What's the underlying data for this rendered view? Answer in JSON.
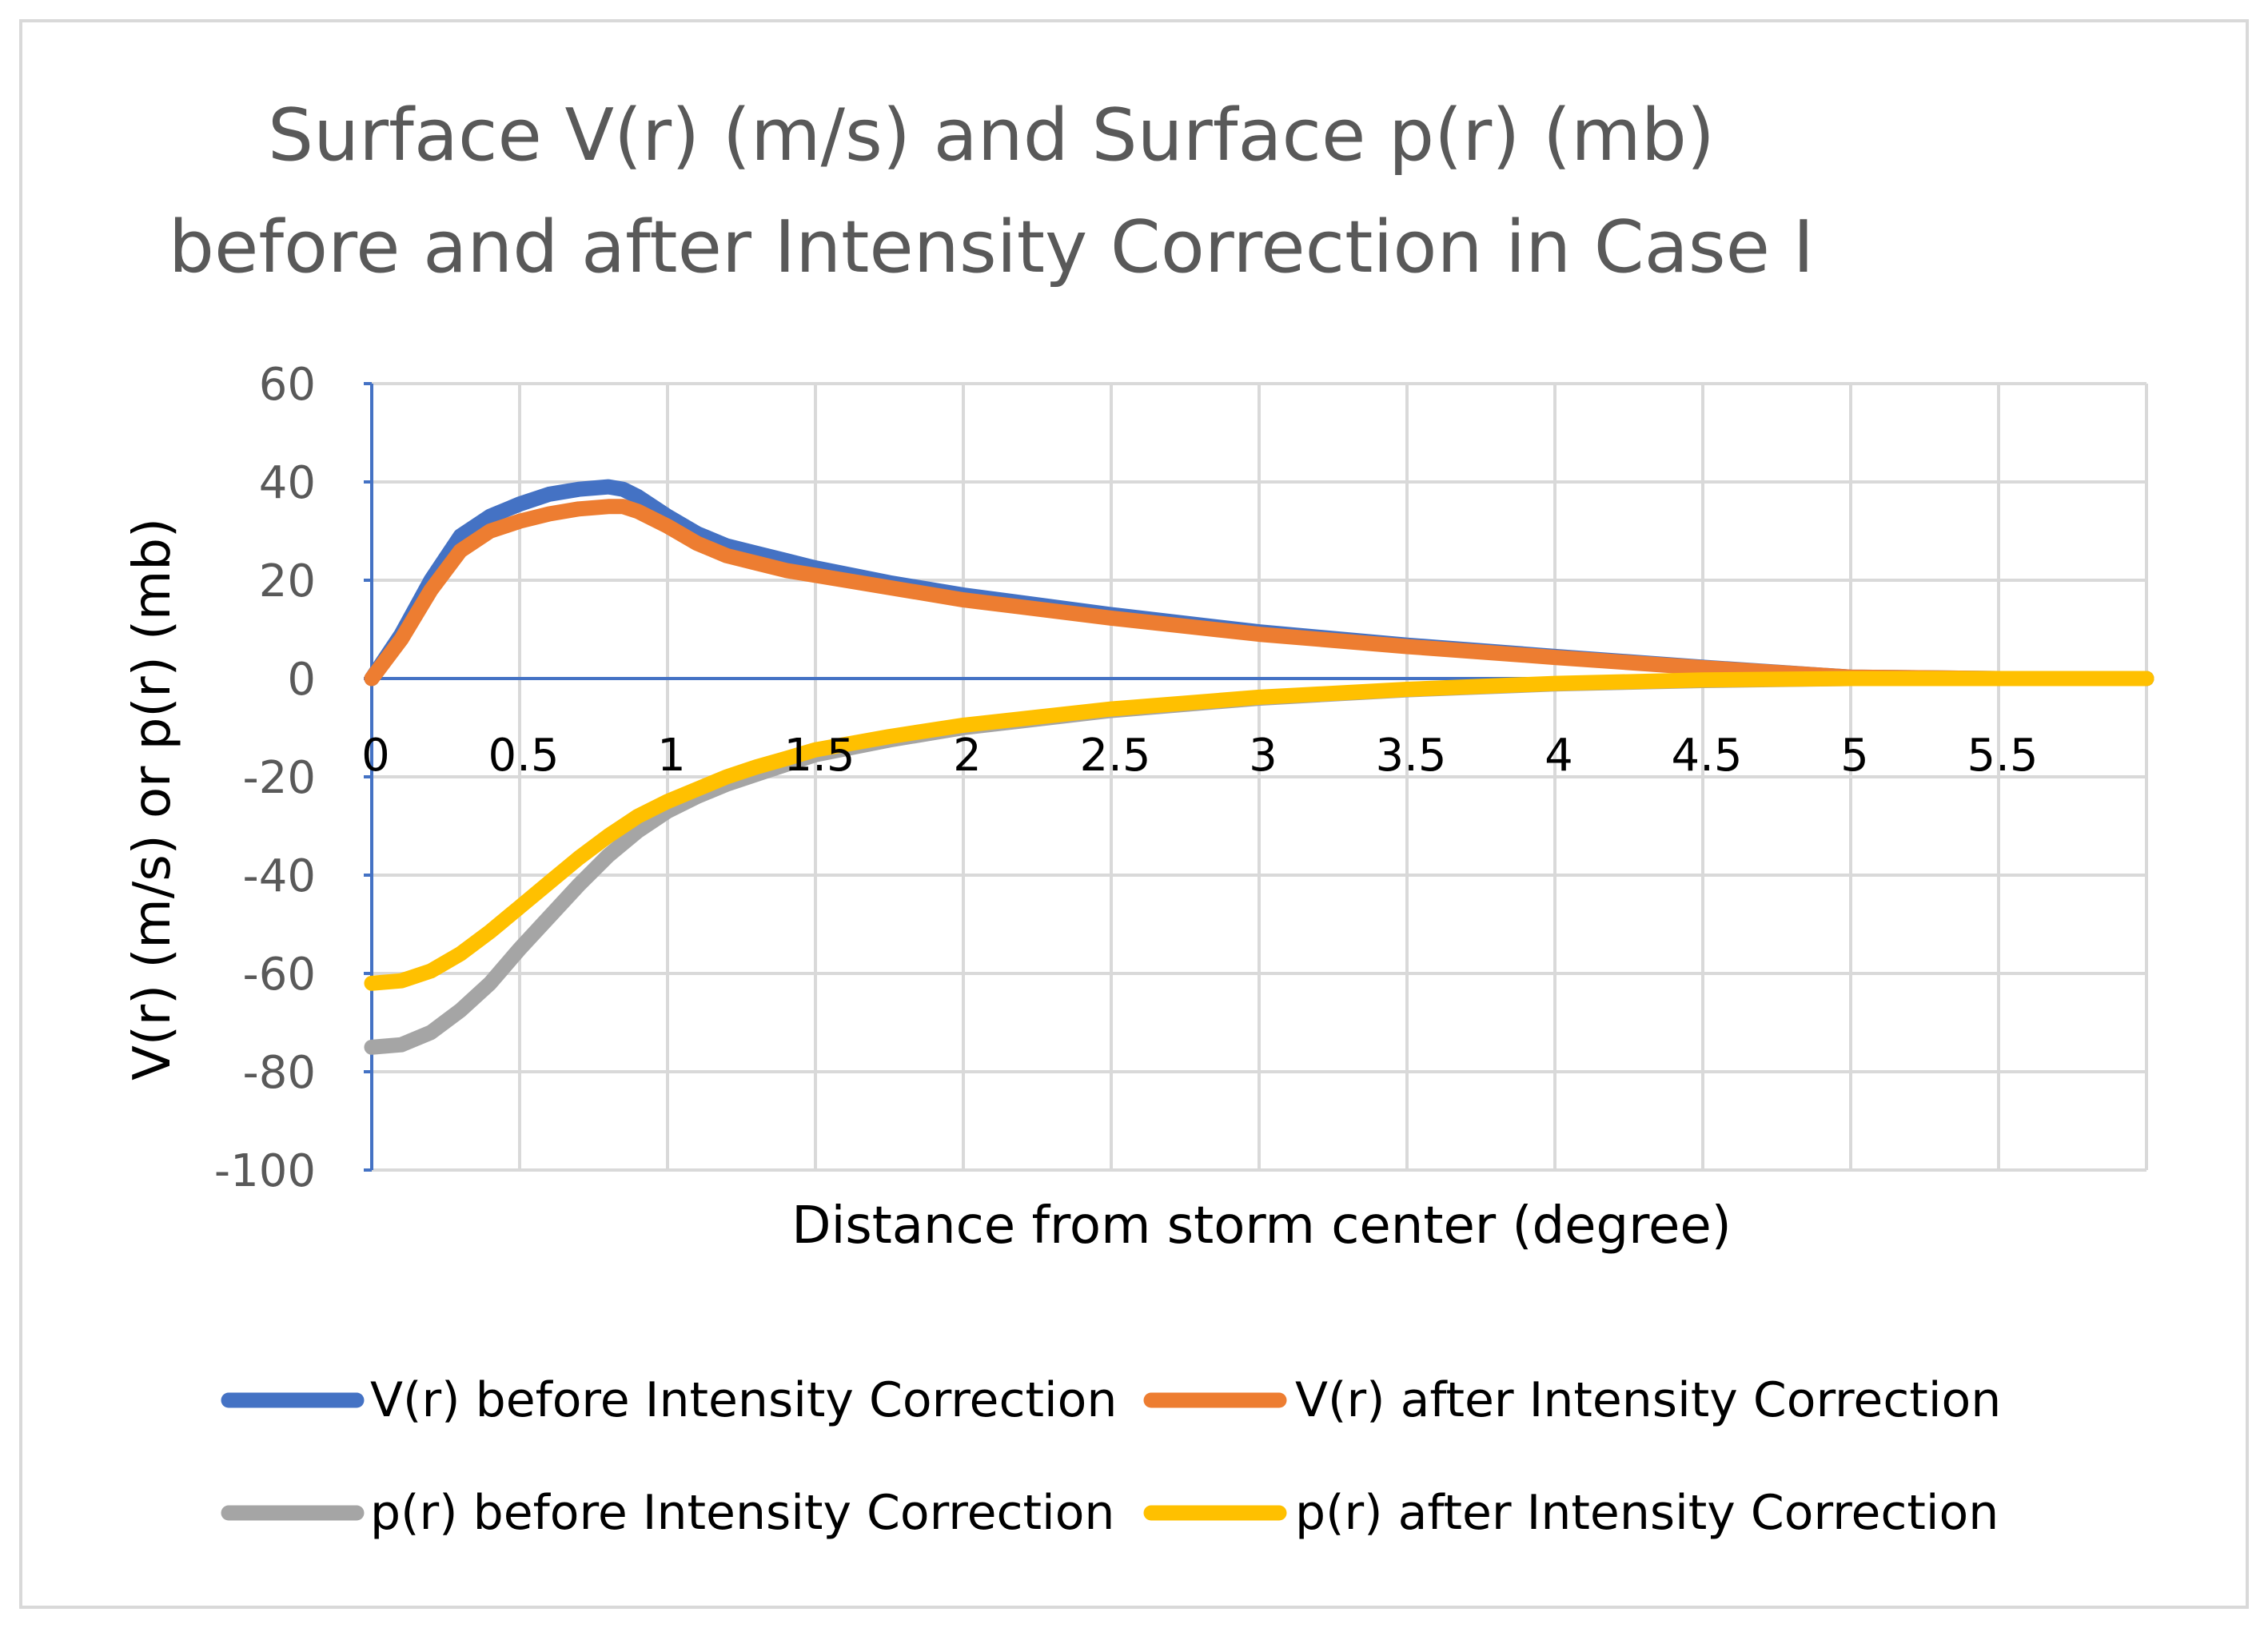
{
  "chart_data": {
    "type": "line",
    "title": [
      "Surface V(r) (m/s) and Surface p(r) (mb)",
      "before and after Intensity Correction in Case I"
    ],
    "xlabel": "Distance from storm center (degree)",
    "ylabel": "V(r) (m/s) or p(r) (mb)",
    "xlim": [
      0,
      6
    ],
    "ylim": [
      -100,
      60
    ],
    "x_ticks": [
      "0",
      "0.5",
      "1",
      "1.5",
      "2",
      "2.5",
      "3",
      "3.5",
      "4",
      "4.5",
      "5",
      "5.5"
    ],
    "y_ticks": [
      "60",
      "40",
      "20",
      "0",
      "-20",
      "-40",
      "-60",
      "-80",
      "-100"
    ],
    "grid": true,
    "legend_position": "bottom",
    "series": [
      {
        "name": "V(r) before Intensity Correction",
        "color": "#4472C4",
        "x": [
          0,
          0.1,
          0.2,
          0.3,
          0.4,
          0.5,
          0.6,
          0.7,
          0.8,
          0.85,
          0.9,
          1.0,
          1.1,
          1.2,
          1.3,
          1.4,
          1.5,
          1.75,
          2.0,
          2.5,
          3.0,
          3.5,
          4.0,
          4.5,
          5.0,
          5.5,
          6.0
        ],
        "y": [
          0,
          9,
          20,
          29,
          33,
          35.5,
          37.5,
          38.5,
          39,
          38.5,
          37,
          33,
          29.5,
          27,
          25.5,
          24,
          22.5,
          19.5,
          17,
          13,
          9.5,
          6.8,
          4.5,
          2.3,
          0.3,
          0,
          0
        ]
      },
      {
        "name": "V(r) after Intensity Correction",
        "color": "#ED7D31",
        "x": [
          0,
          0.1,
          0.2,
          0.3,
          0.4,
          0.5,
          0.6,
          0.7,
          0.8,
          0.85,
          0.9,
          1.0,
          1.1,
          1.2,
          1.3,
          1.4,
          1.5,
          1.75,
          2.0,
          2.5,
          3.0,
          3.5,
          4.0,
          4.5,
          5.0,
          5.5,
          6.0
        ],
        "y": [
          0,
          8,
          18,
          26,
          30,
          32,
          33.5,
          34.5,
          35,
          35,
          34,
          31,
          27.5,
          25,
          23.5,
          22,
          21,
          18.5,
          16,
          12.3,
          9,
          6.5,
          4.3,
          2.2,
          0.3,
          0,
          0
        ]
      },
      {
        "name": "p(r) before Intensity Correction",
        "color": "#A5A5A5",
        "x": [
          0,
          0.1,
          0.2,
          0.3,
          0.4,
          0.5,
          0.6,
          0.7,
          0.8,
          0.9,
          1.0,
          1.1,
          1.2,
          1.3,
          1.4,
          1.5,
          1.75,
          2.0,
          2.5,
          3.0,
          3.5,
          4.0,
          4.5,
          5.0,
          5.5,
          6.0
        ],
        "y": [
          -75,
          -74.5,
          -72,
          -67.5,
          -62,
          -55,
          -48.5,
          -42,
          -36,
          -31,
          -27,
          -24,
          -21.5,
          -19.5,
          -17.5,
          -15.5,
          -12.5,
          -10,
          -6.5,
          -4,
          -2.3,
          -1.1,
          -0.4,
          0,
          0,
          0
        ]
      },
      {
        "name": "p(r) after Intensity Correction",
        "color": "#FFC000",
        "x": [
          0,
          0.1,
          0.2,
          0.3,
          0.4,
          0.5,
          0.6,
          0.7,
          0.8,
          0.9,
          1.0,
          1.1,
          1.2,
          1.3,
          1.4,
          1.5,
          1.75,
          2.0,
          2.5,
          3.0,
          3.5,
          4.0,
          4.5,
          5.0,
          5.5,
          6.0
        ],
        "y": [
          -62,
          -61.5,
          -59.5,
          -56,
          -51.5,
          -46.5,
          -41.5,
          -36.5,
          -32,
          -28,
          -25,
          -22.5,
          -20,
          -18,
          -16.3,
          -14.5,
          -11.8,
          -9.5,
          -6.2,
          -3.8,
          -2.2,
          -1,
          -0.3,
          0,
          0,
          0
        ]
      }
    ]
  }
}
